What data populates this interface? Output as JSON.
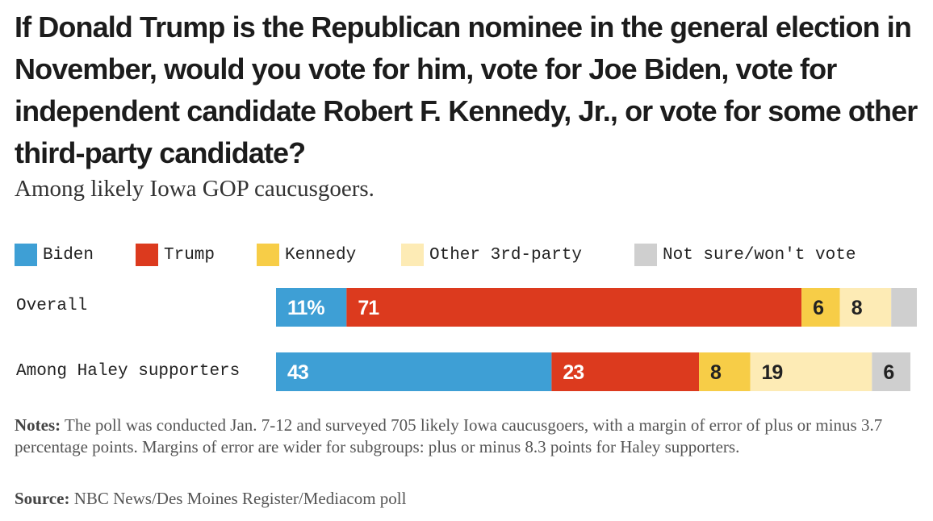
{
  "title": "If Donald Trump is the Republican nominee in the general election in November, would you vote for him, vote for Joe Biden, vote for independent candidate Robert F. Kennedy, Jr., or vote for some other third-party candidate?",
  "subtitle": "Among likely Iowa GOP caucusgoers.",
  "legend": [
    {
      "label": "Biden",
      "color": "#3e9fd5"
    },
    {
      "label": "Trump",
      "color": "#dc3a1e"
    },
    {
      "label": "Kennedy",
      "color": "#f7cd47"
    },
    {
      "label": "Other 3rd-party",
      "color": "#fdebb5"
    },
    {
      "label": "Not sure/won't vote",
      "color": "#cfcfcf"
    }
  ],
  "chart_data": {
    "type": "bar",
    "orientation": "horizontal",
    "stacked": true,
    "categories": [
      "Overall",
      "Among Haley supporters"
    ],
    "series": [
      {
        "name": "Biden",
        "color": "#3e9fd5",
        "values": [
          11,
          43
        ],
        "labels": [
          "11%",
          "43"
        ]
      },
      {
        "name": "Trump",
        "color": "#dc3a1e",
        "values": [
          71,
          23
        ],
        "labels": [
          "71",
          "23"
        ]
      },
      {
        "name": "Kennedy",
        "color": "#f7cd47",
        "values": [
          6,
          8
        ],
        "labels": [
          "6",
          "8"
        ]
      },
      {
        "name": "Other 3rd-party",
        "color": "#fdebb5",
        "values": [
          8,
          19
        ],
        "labels": [
          "8",
          "19"
        ]
      },
      {
        "name": "Not sure/won't vote",
        "color": "#cfcfcf",
        "values": [
          4,
          6
        ],
        "labels": [
          "",
          "6"
        ]
      }
    ],
    "xlim": [
      0,
      100
    ],
    "grid": false,
    "legend_position": "top"
  },
  "notes": {
    "label": "Notes:",
    "text": "The poll was conducted Jan. 7-12 and surveyed 705 likely Iowa caucusgoers, with a margin of error of plus or minus 3.7 percentage points. Margins of error are wider for subgroups: plus or minus 8.3 points for Haley supporters."
  },
  "source": {
    "label": "Source:",
    "text": "NBC News/Des Moines Register/Mediacom poll"
  }
}
